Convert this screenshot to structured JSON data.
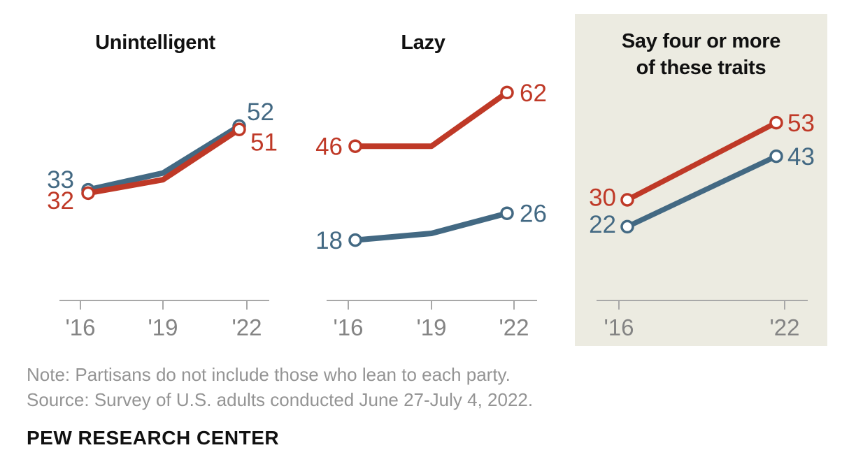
{
  "colors": {
    "red": "#bf3927",
    "blue": "#436983",
    "panel_highlight": "#ecebe1",
    "axis": "#a8a8a8",
    "tick_label": "#848484",
    "note": "#949494",
    "title": "#111111"
  },
  "chart_data": [
    {
      "type": "line",
      "title": "Unintelligent",
      "x": [
        "'16",
        "'19",
        "'22"
      ],
      "series": [
        {
          "name": "blue",
          "color": "#436983",
          "values": [
            33,
            38,
            52
          ]
        },
        {
          "name": "red",
          "color": "#bf3927",
          "values": [
            32,
            36,
            51
          ]
        }
      ],
      "ylim": [
        0,
        70
      ],
      "grid": false,
      "legend": "none",
      "labels": "endpoints-only",
      "highlighted": false
    },
    {
      "type": "line",
      "title": "Lazy",
      "x": [
        "'16",
        "'19",
        "'22"
      ],
      "series": [
        {
          "name": "blue",
          "color": "#436983",
          "values": [
            18,
            20,
            26
          ]
        },
        {
          "name": "red",
          "color": "#bf3927",
          "values": [
            46,
            46,
            62
          ]
        }
      ],
      "ylim": [
        0,
        70
      ],
      "grid": false,
      "legend": "none",
      "labels": "endpoints-only",
      "highlighted": false
    },
    {
      "type": "line",
      "title": "Say four or more of these traits",
      "title_lines": [
        "Say four or more",
        "of these traits"
      ],
      "x": [
        "'16",
        "'22"
      ],
      "series": [
        {
          "name": "blue",
          "color": "#436983",
          "values": [
            22,
            43
          ]
        },
        {
          "name": "red",
          "color": "#bf3927",
          "values": [
            30,
            53
          ]
        }
      ],
      "ylim": [
        0,
        70
      ],
      "grid": false,
      "legend": "none",
      "labels": "endpoints-only",
      "highlighted": true
    }
  ],
  "footer": {
    "note": "Note: Partisans do not include those who lean to each party.",
    "source": "Source: Survey of U.S. adults conducted June 27-July 4, 2022.",
    "brand": "PEW RESEARCH CENTER"
  }
}
